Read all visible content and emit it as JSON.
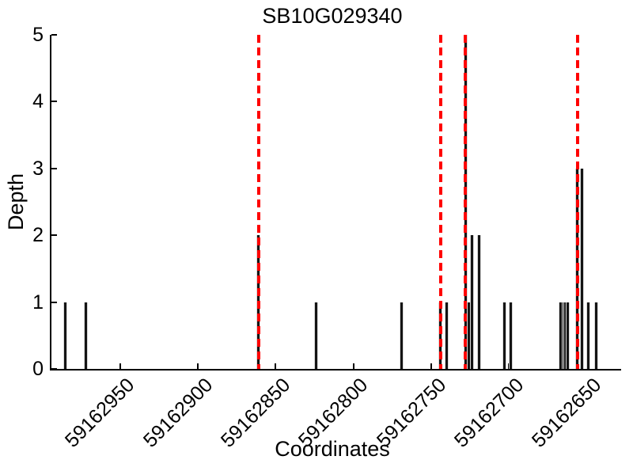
{
  "chart_data": {
    "type": "bar",
    "title": "SB10G029340",
    "xlabel": "Coordinates",
    "ylabel": "Depth",
    "x_axis": {
      "reversed": true,
      "left_value": 59162994,
      "right_value": 59162633,
      "ticks": [
        59162950,
        59162900,
        59162850,
        59162800,
        59162750,
        59162700,
        59162650
      ]
    },
    "y_axis": {
      "ylim": [
        0,
        5
      ],
      "ticks": [
        0,
        1,
        2,
        3,
        4,
        5
      ]
    },
    "grid": false,
    "legend": false,
    "bars": [
      {
        "x": 59162985,
        "depth": 1
      },
      {
        "x": 59162972,
        "depth": 1
      },
      {
        "x": 59162861,
        "depth": 2
      },
      {
        "x": 59162824,
        "depth": 1
      },
      {
        "x": 59162769,
        "depth": 1
      },
      {
        "x": 59162744,
        "depth": 1
      },
      {
        "x": 59162740,
        "depth": 1
      },
      {
        "x": 59162728,
        "depth": 5
      },
      {
        "x": 59162726,
        "depth": 1
      },
      {
        "x": 59162724,
        "depth": 2
      },
      {
        "x": 59162719,
        "depth": 2
      },
      {
        "x": 59162703,
        "depth": 1
      },
      {
        "x": 59162699,
        "depth": 1
      },
      {
        "x": 59162667,
        "depth": 1
      },
      {
        "x": 59162665,
        "depth": 1
      },
      {
        "x": 59162664,
        "depth": 1
      },
      {
        "x": 59162662,
        "depth": 1
      },
      {
        "x": 59162656,
        "depth": 3
      },
      {
        "x": 59162653,
        "depth": 3
      },
      {
        "x": 59162649,
        "depth": 1
      },
      {
        "x": 59162644,
        "depth": 1
      }
    ],
    "red_dashed_lines_x": [
      59162861,
      59162744,
      59162728,
      59162656
    ],
    "colors": {
      "bar": "#141414",
      "marker_line": "#ff0000",
      "axis": "#000000",
      "background": "#ffffff"
    }
  }
}
